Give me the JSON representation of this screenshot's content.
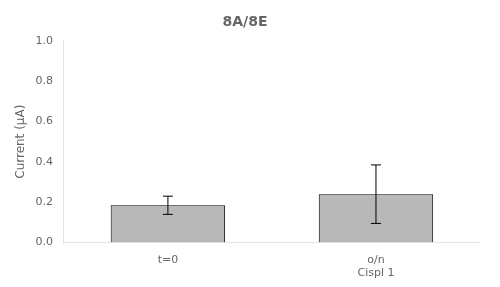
{
  "chart_data": {
    "type": "bar",
    "title": "8A/8E",
    "categories": [
      "t=0",
      "o/n\nCispl 1"
    ],
    "values": [
      0.185,
      0.24
    ],
    "errors": [
      0.045,
      0.145
    ],
    "color": "#b8b8b8",
    "y_label": "Current (μA)",
    "ylim": [
      0.0,
      1.0
    ],
    "yticks": [
      0.0,
      0.2,
      0.4,
      0.6,
      0.8,
      1.0
    ],
    "grid": false
  }
}
